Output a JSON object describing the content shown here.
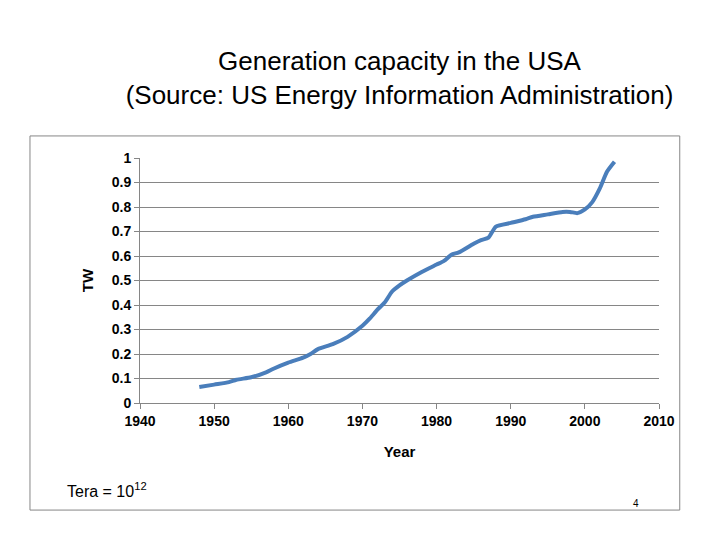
{
  "chart_data": {
    "type": "line",
    "title": "Generation capacity in the USA",
    "subtitle": "(Source: US Energy Information Administration)",
    "x_label": "Year",
    "y_label": "TW",
    "x": [
      1948,
      1950,
      1952,
      1953,
      1955,
      1957,
      1958,
      1960,
      1962,
      1963,
      1964,
      1966,
      1968,
      1970,
      1971,
      1972,
      1973,
      1974,
      1975,
      1976,
      1978,
      1980,
      1981,
      1982,
      1983,
      1985,
      1986,
      1987,
      1988,
      1990,
      1992,
      1993,
      1995,
      1997,
      1998,
      1999,
      2000,
      2001,
      2002,
      2003,
      2004
    ],
    "values": [
      0.065,
      0.075,
      0.085,
      0.095,
      0.105,
      0.125,
      0.14,
      0.165,
      0.185,
      0.2,
      0.22,
      0.24,
      0.27,
      0.315,
      0.345,
      0.38,
      0.41,
      0.455,
      0.48,
      0.5,
      0.535,
      0.565,
      0.58,
      0.605,
      0.615,
      0.65,
      0.665,
      0.675,
      0.72,
      0.735,
      0.75,
      0.76,
      0.77,
      0.78,
      0.78,
      0.775,
      0.79,
      0.82,
      0.875,
      0.945,
      0.985
    ],
    "color": "#4a7ebb",
    "xlim": [
      1940,
      2010
    ],
    "xticks": [
      1940,
      1950,
      1960,
      1970,
      1980,
      1990,
      2000,
      2010
    ],
    "ylim": [
      0,
      1
    ],
    "yticks": [
      0,
      0.1,
      0.2,
      0.3,
      0.4,
      0.5,
      0.6,
      0.7,
      0.8,
      0.9,
      1
    ],
    "grid": true,
    "annotations": [
      {
        "text": "Tera = 10",
        "superscript": "12"
      },
      {
        "text": "4"
      }
    ]
  }
}
